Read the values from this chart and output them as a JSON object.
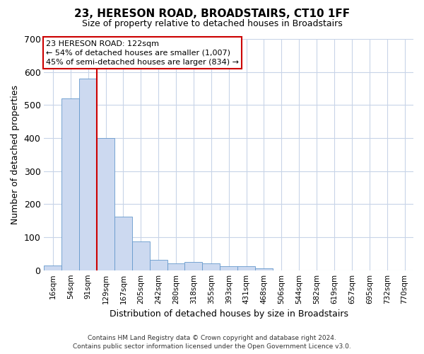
{
  "title": "23, HERESON ROAD, BROADSTAIRS, CT10 1FF",
  "subtitle": "Size of property relative to detached houses in Broadstairs",
  "xlabel": "Distribution of detached houses by size in Broadstairs",
  "ylabel": "Number of detached properties",
  "bar_face_color": "#ccd9f0",
  "bar_edge_color": "#6699cc",
  "fig_bg_color": "#ffffff",
  "axes_bg_color": "#ffffff",
  "grid_color": "#c8d4e8",
  "categories": [
    "16sqm",
    "54sqm",
    "91sqm",
    "129sqm",
    "167sqm",
    "205sqm",
    "242sqm",
    "280sqm",
    "318sqm",
    "355sqm",
    "393sqm",
    "431sqm",
    "468sqm",
    "506sqm",
    "544sqm",
    "582sqm",
    "619sqm",
    "657sqm",
    "695sqm",
    "732sqm",
    "770sqm"
  ],
  "values": [
    14,
    521,
    580,
    400,
    163,
    88,
    32,
    20,
    25,
    20,
    12,
    12,
    5,
    0,
    0,
    0,
    0,
    0,
    0,
    0,
    0
  ],
  "ylim": [
    0,
    700
  ],
  "yticks": [
    0,
    100,
    200,
    300,
    400,
    500,
    600,
    700
  ],
  "vline_pos": 3,
  "vline_color": "#cc0000",
  "ann_line1": "23 HERESON ROAD: 122sqm",
  "ann_line2": "← 54% of detached houses are smaller (1,007)",
  "ann_line3": "45% of semi-detached houses are larger (834) →",
  "ann_box_fc": "#ffffff",
  "ann_box_ec": "#cc0000",
  "footer1": "Contains HM Land Registry data © Crown copyright and database right 2024.",
  "footer2": "Contains public sector information licensed under the Open Government Licence v3.0."
}
